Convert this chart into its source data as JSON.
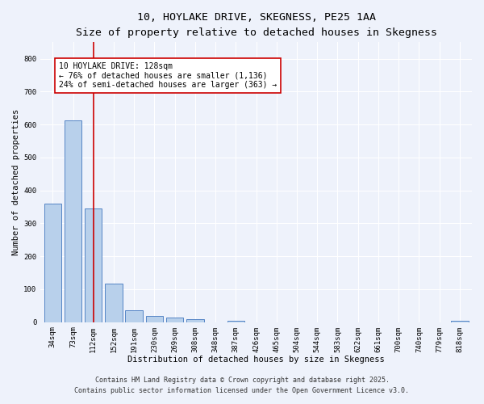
{
  "title_line1": "10, HOYLAKE DRIVE, SKEGNESS, PE25 1AA",
  "title_line2": "Size of property relative to detached houses in Skegness",
  "xlabel": "Distribution of detached houses by size in Skegness",
  "ylabel": "Number of detached properties",
  "categories": [
    "34sqm",
    "73sqm",
    "112sqm",
    "152sqm",
    "191sqm",
    "230sqm",
    "269sqm",
    "308sqm",
    "348sqm",
    "387sqm",
    "426sqm",
    "465sqm",
    "504sqm",
    "544sqm",
    "583sqm",
    "622sqm",
    "661sqm",
    "700sqm",
    "740sqm",
    "779sqm",
    "818sqm"
  ],
  "values": [
    360,
    614,
    345,
    116,
    37,
    20,
    14,
    9,
    0,
    5,
    0,
    0,
    0,
    0,
    0,
    0,
    0,
    0,
    0,
    0,
    5
  ],
  "bar_color": "#b8d0eb",
  "bar_edge_color": "#5585c5",
  "vline_x": 2,
  "vline_color": "#cc0000",
  "annotation_text": "10 HOYLAKE DRIVE: 128sqm\n← 76% of detached houses are smaller (1,136)\n24% of semi-detached houses are larger (363) →",
  "annotation_box_color": "#ffffff",
  "annotation_box_edge": "#cc0000",
  "ylim": [
    0,
    850
  ],
  "yticks": [
    0,
    100,
    200,
    300,
    400,
    500,
    600,
    700,
    800
  ],
  "footer_line1": "Contains HM Land Registry data © Crown copyright and database right 2025.",
  "footer_line2": "Contains public sector information licensed under the Open Government Licence v3.0.",
  "bg_color": "#eef2fb",
  "plot_bg_color": "#eef2fb",
  "grid_color": "#ffffff",
  "title_fontsize": 9.5,
  "subtitle_fontsize": 8.5,
  "axis_label_fontsize": 7.5,
  "tick_fontsize": 6.5,
  "annotation_fontsize": 7.0,
  "footer_fontsize": 6.0
}
